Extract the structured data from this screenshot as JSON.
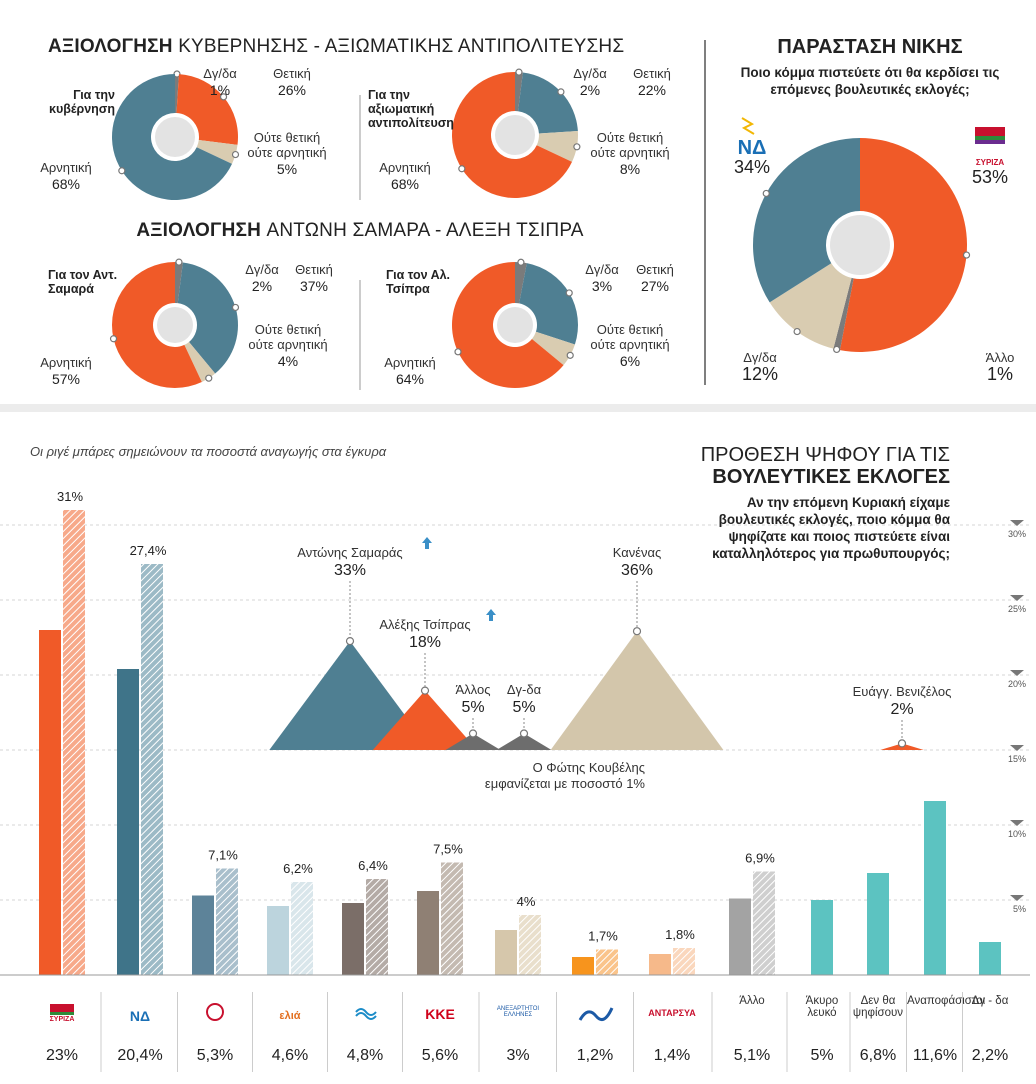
{
  "headings": [
    {
      "bold": "ΑΞΙΟΛΟΓΗΣΗ",
      "rest": "ΚΥΒΕΡΝΗΣΗΣ - ΑΞΙΩΜΑΤΙΚΗΣ ΑΝΤΙΠΟΛΙΤΕΥΣΗΣ"
    },
    {
      "bold": "ΑΞΙΟΛΟΓΗΣΗ",
      "rest": "ΑΝΤΩΝΗ ΣΑΜΑΡΑ - ΑΛΕΞΗ ΤΣΙΠΡΑ"
    }
  ],
  "chart_data": [
    {
      "type": "pie",
      "title": "Για την κυβέρνηση",
      "categories": [
        "Δγ/δα",
        "Θετική",
        "Ούτε θετική ούτε αρνητική",
        "Αρνητική"
      ],
      "values": [
        1,
        26,
        5,
        68
      ],
      "value_labels": [
        "1%",
        "26%",
        "5%",
        "68%"
      ],
      "colors": [
        "#7b7b7b",
        "#f05a28",
        "#d9ccb1",
        "#4f7f92"
      ]
    },
    {
      "type": "pie",
      "title": "Για την αξιωματική αντιπολίτευση",
      "categories": [
        "Δγ/δα",
        "Θετική",
        "Ούτε θετική ούτε αρνητική",
        "Αρνητική"
      ],
      "values": [
        2,
        22,
        8,
        68
      ],
      "value_labels": [
        "2%",
        "22%",
        "8%",
        "68%"
      ],
      "colors": [
        "#7b7b7b",
        "#4f7f92",
        "#d9ccb1",
        "#f05a28"
      ]
    },
    {
      "type": "pie",
      "title": "Για τον Αντ. Σαμαρά",
      "categories": [
        "Δγ/δα",
        "Θετική",
        "Ούτε θετική ούτε αρνητική",
        "Αρνητική"
      ],
      "values": [
        2,
        37,
        4,
        57
      ],
      "value_labels": [
        "2%",
        "37%",
        "4%",
        "57%"
      ],
      "colors": [
        "#7b7b7b",
        "#4f7f92",
        "#d9ccb1",
        "#f05a28"
      ]
    },
    {
      "type": "pie",
      "title": "Για τον Αλ. Τσίπρα",
      "categories": [
        "Δγ/δα",
        "Θετική",
        "Ούτε θετική ούτε αρνητική",
        "Αρνητική"
      ],
      "values": [
        3,
        27,
        6,
        64
      ],
      "value_labels": [
        "3%",
        "27%",
        "6%",
        "64%"
      ],
      "colors": [
        "#7b7b7b",
        "#4f7f92",
        "#d9ccb1",
        "#f05a28"
      ]
    },
    {
      "type": "pie",
      "title": "ΠΑΡΑΣΤΑΣΗ ΝΙΚΗΣ",
      "subtitle": "Ποιο κόμμα πιστεύετε ότι θα κερδίσει τις επόμενες βουλευτικές εκλογές;",
      "categories": [
        "ΣΥΡΙΖΑ",
        "Άλλο",
        "Δγ/δα",
        "ΝΔ"
      ],
      "values": [
        53,
        1,
        12,
        34
      ],
      "value_labels": [
        "53%",
        "1%",
        "12%",
        "34%"
      ],
      "colors": [
        "#f05a28",
        "#7b7b7b",
        "#d9ccb1",
        "#4f7f92"
      ]
    },
    {
      "type": "bar",
      "title": [
        "ΠΡΟΘΕΣΗ ΨΗΦΟΥ ΓΙΑ ΤΙΣ",
        "ΒΟΥΛΕΥΤΙΚΕΣ ΕΚΛΟΓΕΣ"
      ],
      "subtitle": "Αν την επόμενη Κυριακή είχαμε βουλευτικές εκλογές, ποιο κόμμα θα ψηφίζατε και ποιος πιστεύετε είναι καταλληλότερος για πρωθυπουργός;",
      "note": "Οι ριγέ μπάρες σημειώνουν τα ποσοστά αναγωγής στα έγκυρα",
      "categories": [
        "ΣΥΡΙΖΑ",
        "ΝΔ",
        null,
        "ελιά",
        null,
        "ΚΚΕ",
        "ΑΝΕΞΑΡΤΗΤΟΙ ΕΛΛΗΝΕΣ",
        null,
        "ΑΝΤΑΡΣΥΑ",
        "Άλλο",
        "Άκυρο λευκό",
        "Δεν θα ψηφίσουν",
        "Αναποφάσιστοι",
        "Δγ - δα"
      ],
      "series": [
        {
          "values": [
            23,
            20.4,
            5.3,
            4.6,
            4.8,
            5.6,
            3,
            1.2,
            1.4,
            5.1,
            5,
            6.8,
            11.6,
            2.2
          ],
          "value_labels": [
            "23%",
            "20,4%",
            "5,3%",
            "4,6%",
            "4,8%",
            "5,6%",
            "3%",
            "1,2%",
            "1,4%",
            "5,1%",
            "5%",
            "6,8%",
            "11,6%",
            "2,2%"
          ],
          "colors": [
            "#f05a28",
            "#3f7489",
            "#5d8399",
            "#bcd4dd",
            "#7b6e68",
            "#8f8074",
            "#d6c7ab",
            "#f7941d",
            "#f6b98a",
            "#a3a3a3",
            "#5cc3c1",
            "#5cc3c1",
            "#5cc3c1",
            "#5cc3c1"
          ]
        },
        {
          "values": [
            31,
            27.4,
            7.1,
            6.2,
            6.4,
            7.5,
            4,
            1.7,
            1.8,
            6.9,
            null,
            null,
            null,
            null
          ],
          "value_labels": [
            "31%",
            "27,4%",
            "7,1%",
            "6,2%",
            "6,4%",
            "7,5%",
            "4%",
            "1,7%",
            "1,8%",
            "6,9%",
            null,
            null,
            null,
            null
          ],
          "colors": [
            "#f7a98a",
            "#9cbac6",
            "#a9bfcc",
            "#d9e6eb",
            "#b4aba6",
            "#c4bab1",
            "#e9dfcc",
            "#fac48b",
            "#fad7bd",
            "#cfcfcf",
            "#5cc3c1",
            "#5cc3c1",
            "#5cc3c1",
            "#5cc3c1"
          ]
        }
      ],
      "ylim": [
        0,
        32
      ],
      "yticks": [
        {
          "value": 5,
          "label": "5%"
        },
        {
          "value": 10,
          "label": "10%"
        },
        {
          "value": 15,
          "label": "15%"
        },
        {
          "value": 20,
          "label": "20%"
        },
        {
          "value": 25,
          "label": "25%"
        },
        {
          "value": 30,
          "label": "30%"
        }
      ],
      "grid": true
    },
    {
      "type": "triangle",
      "categories": [
        "Αντώνης Σαμαράς",
        "Αλέξης Τσίπρας",
        "Άλλος",
        "Δγ-δα",
        "Κανένας",
        "Ευάγγ. Βενιζέλος"
      ],
      "values": [
        33,
        18,
        5,
        5,
        36,
        2
      ],
      "value_labels": [
        "33%",
        "18%",
        "5%",
        "5%",
        "36%",
        "2%"
      ],
      "colors": [
        "#4f7f92",
        "#f05a28",
        "#6d6d6d",
        "#6d6d6d",
        "#d3c6ab",
        "#f05a28"
      ],
      "note": "Ο Φώτης Κουβέλης εμφανίζεται με ποσοστό 1%"
    }
  ]
}
